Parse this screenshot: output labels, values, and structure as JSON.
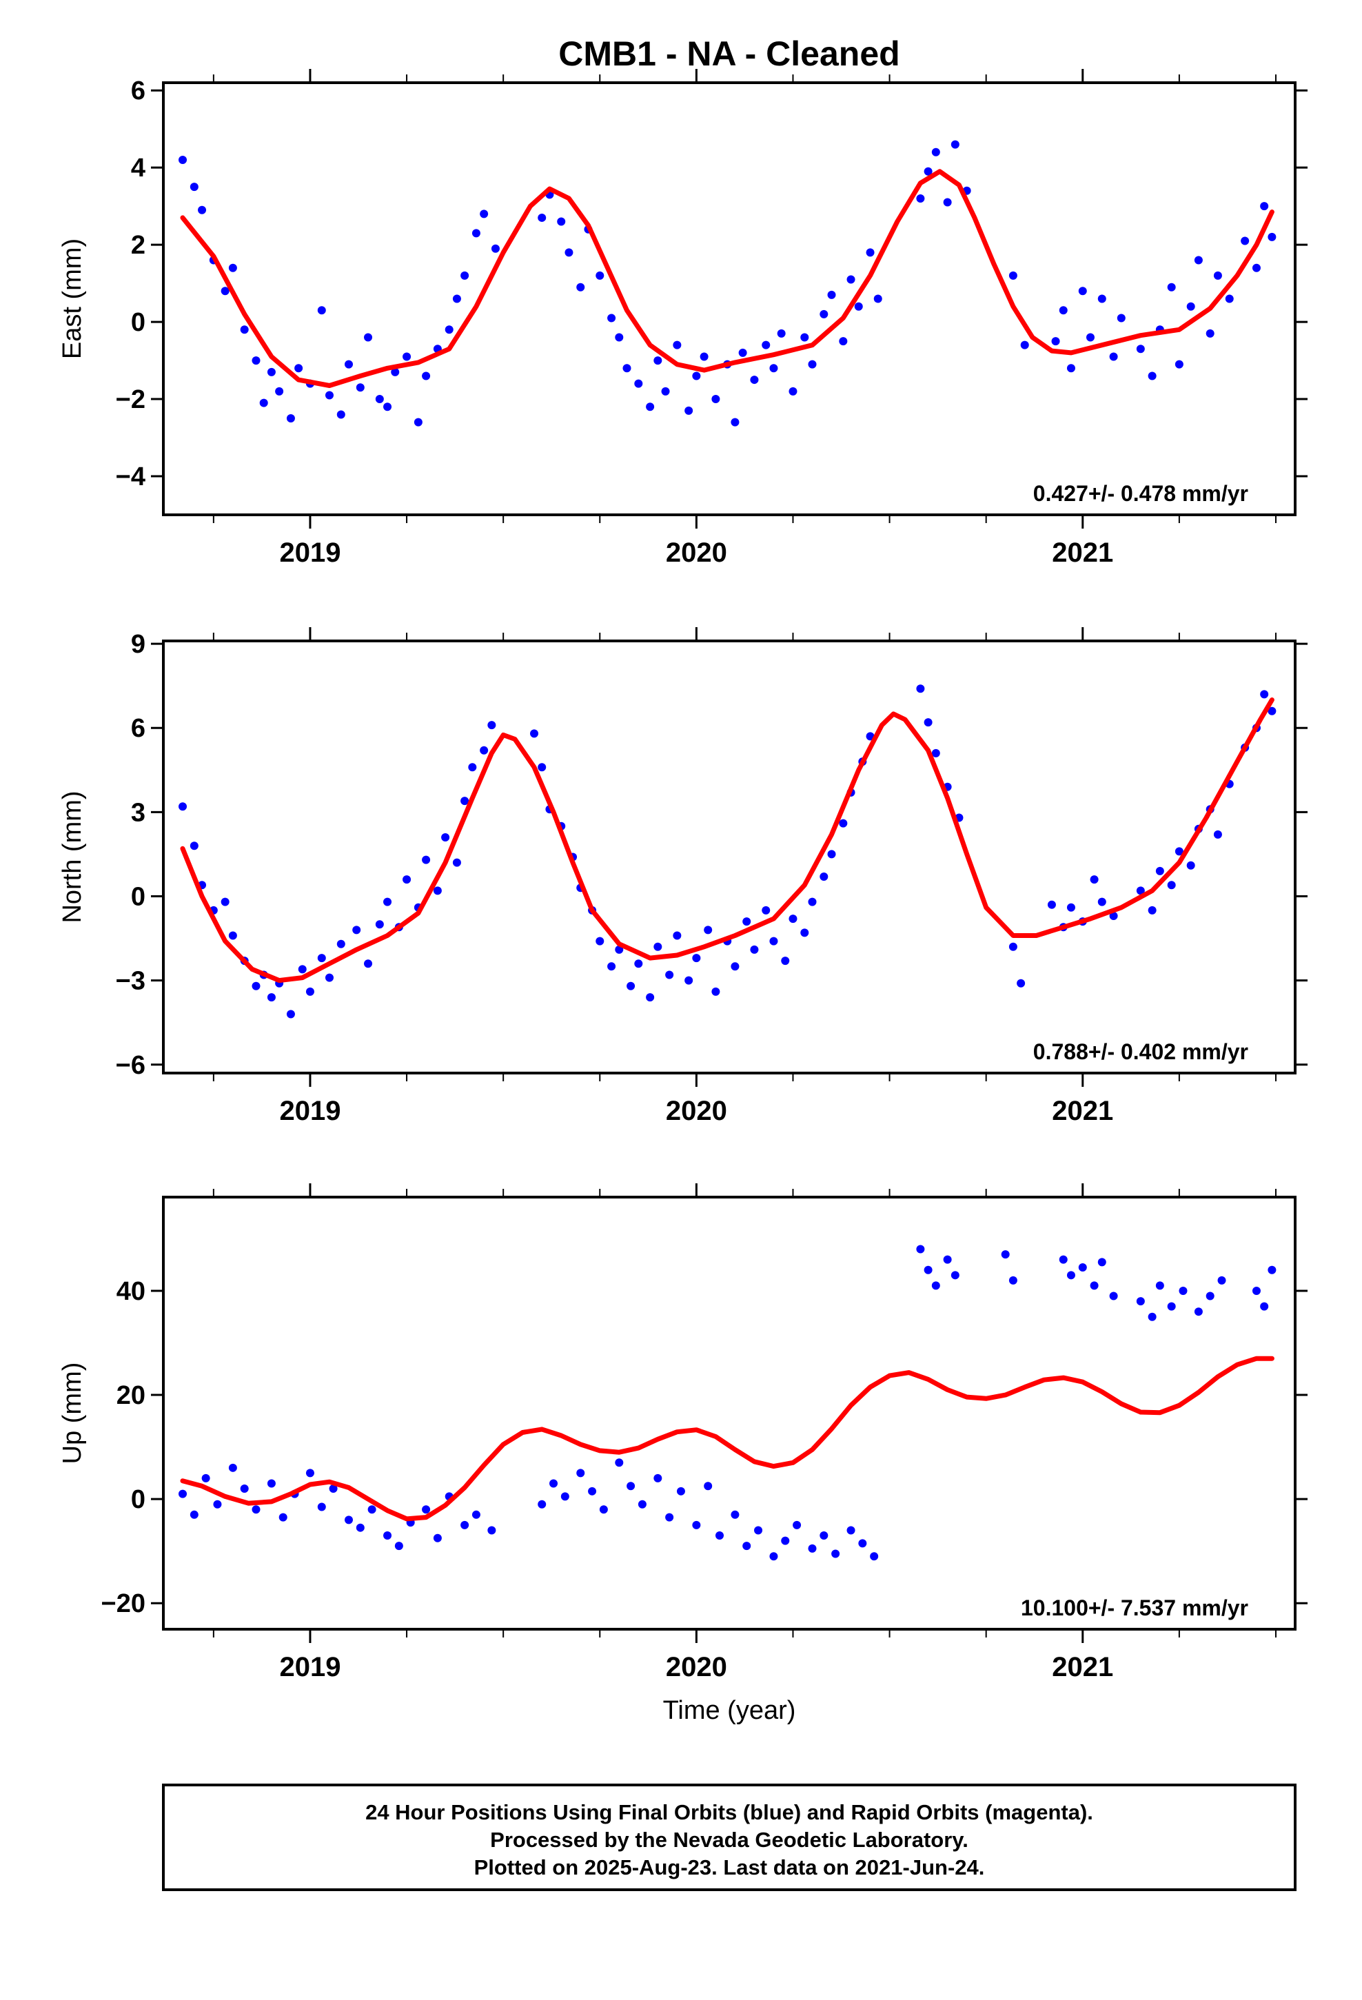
{
  "chart_data": [
    {
      "type": "scatter",
      "title": "CMB1  - NA - Cleaned",
      "ylabel": "East (mm)",
      "xlabel": "",
      "xlim": [
        2018.62,
        2021.55
      ],
      "ylim": [
        -5,
        6.2
      ],
      "yticks": [
        -4,
        -2,
        0,
        2,
        4,
        6
      ],
      "ytick_labels": [
        "−4",
        "−2",
        "0",
        "2",
        "4",
        "6"
      ],
      "xticks": [
        2019,
        2020,
        2021
      ],
      "xtick_labels": [
        "2019",
        "2020",
        "2021"
      ],
      "rate_text": "0.427+/- 0.478 mm/yr",
      "series": [
        {
          "role": "observed daily positions",
          "color": "#0000ff",
          "style": "dots",
          "x": [
            2018.67,
            2018.7,
            2018.72,
            2018.75,
            2018.78,
            2018.8,
            2018.83,
            2018.86,
            2018.88,
            2018.9,
            2018.92,
            2018.95,
            2018.97,
            2019.0,
            2019.03,
            2019.05,
            2019.08,
            2019.1,
            2019.13,
            2019.15,
            2019.18,
            2019.2,
            2019.22,
            2019.25,
            2019.28,
            2019.3,
            2019.33,
            2019.36,
            2019.38,
            2019.4,
            2019.43,
            2019.45,
            2019.48,
            2019.6,
            2019.62,
            2019.65,
            2019.67,
            2019.7,
            2019.72,
            2019.75,
            2019.78,
            2019.8,
            2019.82,
            2019.85,
            2019.88,
            2019.9,
            2019.92,
            2019.95,
            2019.98,
            2020.0,
            2020.02,
            2020.05,
            2020.08,
            2020.1,
            2020.12,
            2020.15,
            2020.18,
            2020.2,
            2020.22,
            2020.25,
            2020.28,
            2020.3,
            2020.33,
            2020.35,
            2020.38,
            2020.4,
            2020.42,
            2020.45,
            2020.47,
            2020.58,
            2020.6,
            2020.62,
            2020.65,
            2020.67,
            2020.7,
            2020.82,
            2020.85,
            2020.93,
            2020.95,
            2020.97,
            2021.0,
            2021.02,
            2021.05,
            2021.08,
            2021.1,
            2021.15,
            2021.18,
            2021.2,
            2021.23,
            2021.25,
            2021.28,
            2021.3,
            2021.33,
            2021.35,
            2021.38,
            2021.42,
            2021.45,
            2021.47,
            2021.49
          ],
          "y": [
            4.2,
            3.5,
            2.9,
            1.6,
            0.8,
            1.4,
            -0.2,
            -1.0,
            -2.1,
            -1.3,
            -1.8,
            -2.5,
            -1.2,
            -1.6,
            0.3,
            -1.9,
            -2.4,
            -1.1,
            -1.7,
            -0.4,
            -2.0,
            -2.2,
            -1.3,
            -0.9,
            -2.6,
            -1.4,
            -0.7,
            -0.2,
            0.6,
            1.2,
            2.3,
            2.8,
            1.9,
            2.7,
            3.3,
            2.6,
            1.8,
            0.9,
            2.4,
            1.2,
            0.1,
            -0.4,
            -1.2,
            -1.6,
            -2.2,
            -1.0,
            -1.8,
            -0.6,
            -2.3,
            -1.4,
            -0.9,
            -2.0,
            -1.1,
            -2.6,
            -0.8,
            -1.5,
            -0.6,
            -1.2,
            -0.3,
            -1.8,
            -0.4,
            -1.1,
            0.2,
            0.7,
            -0.5,
            1.1,
            0.4,
            1.8,
            0.6,
            3.2,
            3.9,
            4.4,
            3.1,
            4.6,
            3.4,
            1.2,
            -0.6,
            -0.5,
            0.3,
            -1.2,
            0.8,
            -0.4,
            0.6,
            -0.9,
            0.1,
            -0.7,
            -1.4,
            -0.2,
            0.9,
            -1.1,
            0.4,
            1.6,
            -0.3,
            1.2,
            0.6,
            2.1,
            1.4,
            3.0,
            2.2
          ]
        },
        {
          "role": "model fit",
          "color": "#ff0000",
          "style": "line",
          "x": [
            2018.67,
            2018.75,
            2018.83,
            2018.9,
            2018.97,
            2019.05,
            2019.13,
            2019.2,
            2019.28,
            2019.36,
            2019.43,
            2019.5,
            2019.57,
            2019.62,
            2019.67,
            2019.72,
            2019.77,
            2019.82,
            2019.88,
            2019.95,
            2020.02,
            2020.1,
            2020.2,
            2020.3,
            2020.38,
            2020.45,
            2020.52,
            2020.58,
            2020.63,
            2020.68,
            2020.72,
            2020.77,
            2020.82,
            2020.87,
            2020.92,
            2020.97,
            2021.05,
            2021.15,
            2021.25,
            2021.33,
            2021.4,
            2021.45,
            2021.49
          ],
          "y": [
            2.7,
            1.7,
            0.2,
            -0.9,
            -1.5,
            -1.65,
            -1.4,
            -1.2,
            -1.05,
            -0.7,
            0.4,
            1.8,
            3.0,
            3.45,
            3.2,
            2.5,
            1.4,
            0.3,
            -0.6,
            -1.1,
            -1.25,
            -1.05,
            -0.85,
            -0.6,
            0.1,
            1.2,
            2.6,
            3.6,
            3.9,
            3.55,
            2.7,
            1.5,
            0.4,
            -0.4,
            -0.75,
            -0.8,
            -0.6,
            -0.35,
            -0.2,
            0.35,
            1.2,
            2.0,
            2.85
          ]
        }
      ]
    },
    {
      "type": "scatter",
      "title": "",
      "ylabel": "North (mm)",
      "xlabel": "",
      "xlim": [
        2018.62,
        2021.55
      ],
      "ylim": [
        -6.3,
        9.1
      ],
      "yticks": [
        -6,
        -3,
        0,
        3,
        6,
        9
      ],
      "ytick_labels": [
        "−6",
        "−3",
        "0",
        "3",
        "6",
        "9"
      ],
      "xticks": [
        2019,
        2020,
        2021
      ],
      "xtick_labels": [
        "2019",
        "2020",
        "2021"
      ],
      "rate_text": "0.788+/- 0.402 mm/yr",
      "series": [
        {
          "role": "observed daily positions",
          "color": "#0000ff",
          "style": "dots",
          "x": [
            2018.67,
            2018.7,
            2018.72,
            2018.75,
            2018.78,
            2018.8,
            2018.83,
            2018.86,
            2018.88,
            2018.9,
            2018.92,
            2018.95,
            2018.98,
            2019.0,
            2019.03,
            2019.05,
            2019.08,
            2019.12,
            2019.15,
            2019.18,
            2019.2,
            2019.23,
            2019.25,
            2019.28,
            2019.3,
            2019.33,
            2019.35,
            2019.38,
            2019.4,
            2019.42,
            2019.45,
            2019.47,
            2019.58,
            2019.6,
            2019.62,
            2019.65,
            2019.68,
            2019.7,
            2019.73,
            2019.75,
            2019.78,
            2019.8,
            2019.83,
            2019.85,
            2019.88,
            2019.9,
            2019.93,
            2019.95,
            2019.98,
            2020.0,
            2020.03,
            2020.05,
            2020.08,
            2020.1,
            2020.13,
            2020.15,
            2020.18,
            2020.2,
            2020.23,
            2020.25,
            2020.28,
            2020.3,
            2020.33,
            2020.35,
            2020.38,
            2020.4,
            2020.43,
            2020.45,
            2020.58,
            2020.6,
            2020.62,
            2020.65,
            2020.68,
            2020.82,
            2020.84,
            2020.92,
            2020.95,
            2020.97,
            2021.0,
            2021.03,
            2021.05,
            2021.08,
            2021.15,
            2021.18,
            2021.2,
            2021.23,
            2021.25,
            2021.28,
            2021.3,
            2021.33,
            2021.35,
            2021.38,
            2021.42,
            2021.45,
            2021.47,
            2021.49
          ],
          "y": [
            3.2,
            1.8,
            0.4,
            -0.5,
            -0.2,
            -1.4,
            -2.3,
            -3.2,
            -2.8,
            -3.6,
            -3.1,
            -4.2,
            -2.6,
            -3.4,
            -2.2,
            -2.9,
            -1.7,
            -1.2,
            -2.4,
            -1.0,
            -0.2,
            -1.1,
            0.6,
            -0.4,
            1.3,
            0.2,
            2.1,
            1.2,
            3.4,
            4.6,
            5.2,
            6.1,
            5.8,
            4.6,
            3.1,
            2.5,
            1.4,
            0.3,
            -0.5,
            -1.6,
            -2.5,
            -1.9,
            -3.2,
            -2.4,
            -3.6,
            -1.8,
            -2.8,
            -1.4,
            -3.0,
            -2.2,
            -1.2,
            -3.4,
            -1.6,
            -2.5,
            -0.9,
            -1.9,
            -0.5,
            -1.6,
            -2.3,
            -0.8,
            -1.3,
            -0.2,
            0.7,
            1.5,
            2.6,
            3.7,
            4.8,
            5.7,
            7.4,
            6.2,
            5.1,
            3.9,
            2.8,
            -1.8,
            -3.1,
            -0.3,
            -1.1,
            -0.4,
            -0.9,
            0.6,
            -0.2,
            -0.7,
            0.2,
            -0.5,
            0.9,
            0.4,
            1.6,
            1.1,
            2.4,
            3.1,
            2.2,
            4.0,
            5.3,
            6.0,
            7.2,
            6.6
          ]
        },
        {
          "role": "model fit",
          "color": "#ff0000",
          "style": "line",
          "x": [
            2018.67,
            2018.72,
            2018.78,
            2018.85,
            2018.92,
            2018.98,
            2019.05,
            2019.12,
            2019.2,
            2019.28,
            2019.35,
            2019.42,
            2019.47,
            2019.5,
            2019.53,
            2019.58,
            2019.63,
            2019.68,
            2019.73,
            2019.8,
            2019.88,
            2019.95,
            2020.02,
            2020.1,
            2020.2,
            2020.28,
            2020.35,
            2020.42,
            2020.48,
            2020.51,
            2020.54,
            2020.6,
            2020.65,
            2020.7,
            2020.75,
            2020.82,
            2020.88,
            2020.95,
            2021.02,
            2021.1,
            2021.18,
            2021.25,
            2021.32,
            2021.4,
            2021.46,
            2021.49
          ],
          "y": [
            1.7,
            0.0,
            -1.6,
            -2.6,
            -3.0,
            -2.9,
            -2.4,
            -1.9,
            -1.4,
            -0.6,
            1.2,
            3.5,
            5.1,
            5.75,
            5.6,
            4.6,
            3.0,
            1.2,
            -0.5,
            -1.7,
            -2.2,
            -2.1,
            -1.8,
            -1.4,
            -0.8,
            0.4,
            2.2,
            4.5,
            6.1,
            6.5,
            6.3,
            5.2,
            3.5,
            1.5,
            -0.4,
            -1.4,
            -1.4,
            -1.1,
            -0.8,
            -0.4,
            0.2,
            1.2,
            2.8,
            4.8,
            6.3,
            7.0
          ]
        }
      ]
    },
    {
      "type": "scatter",
      "title": "",
      "ylabel": "Up (mm)",
      "xlabel": "Time (year)",
      "xlim": [
        2018.62,
        2021.55
      ],
      "ylim": [
        -25,
        58
      ],
      "yticks": [
        -20,
        0,
        20,
        40
      ],
      "ytick_labels": [
        "−20",
        "0",
        "20",
        "40"
      ],
      "xticks": [
        2019,
        2020,
        2021
      ],
      "xtick_labels": [
        "2019",
        "2020",
        "2021"
      ],
      "rate_text": "10.100+/- 7.537 mm/yr",
      "series": [
        {
          "role": "observed daily positions",
          "color": "#0000ff",
          "style": "dots",
          "x": [
            2018.67,
            2018.7,
            2018.73,
            2018.76,
            2018.8,
            2018.83,
            2018.86,
            2018.9,
            2018.93,
            2018.96,
            2019.0,
            2019.03,
            2019.06,
            2019.1,
            2019.13,
            2019.16,
            2019.2,
            2019.23,
            2019.26,
            2019.3,
            2019.33,
            2019.36,
            2019.4,
            2019.43,
            2019.47,
            2019.6,
            2019.63,
            2019.66,
            2019.7,
            2019.73,
            2019.76,
            2019.8,
            2019.83,
            2019.86,
            2019.9,
            2019.93,
            2019.96,
            2020.0,
            2020.03,
            2020.06,
            2020.1,
            2020.13,
            2020.16,
            2020.2,
            2020.23,
            2020.26,
            2020.3,
            2020.33,
            2020.36,
            2020.4,
            2020.43,
            2020.46,
            2020.58,
            2020.6,
            2020.62,
            2020.65,
            2020.67,
            2020.8,
            2020.82,
            2020.95,
            2020.97,
            2021.0,
            2021.03,
            2021.05,
            2021.08,
            2021.15,
            2021.18,
            2021.2,
            2021.23,
            2021.26,
            2021.3,
            2021.33,
            2021.36,
            2021.45,
            2021.47,
            2021.49
          ],
          "y": [
            1.0,
            -3.0,
            4.0,
            -1.0,
            6.0,
            2.0,
            -2.0,
            3.0,
            -3.5,
            1.0,
            5.0,
            -1.5,
            2.0,
            -4.0,
            -5.5,
            -2.0,
            -7.0,
            -9.0,
            -4.5,
            -2.0,
            -7.5,
            0.5,
            -5.0,
            -3.0,
            -6.0,
            -1.0,
            3.0,
            0.5,
            5.0,
            1.5,
            -2.0,
            7.0,
            2.5,
            -1.0,
            4.0,
            -3.5,
            1.5,
            -5.0,
            2.5,
            -7.0,
            -3.0,
            -9.0,
            -6.0,
            -11.0,
            -8.0,
            -5.0,
            -9.5,
            -7.0,
            -10.5,
            -6.0,
            -8.5,
            -11.0,
            48.0,
            44.0,
            41.0,
            46.0,
            43.0,
            47.0,
            42.0,
            46.0,
            43.0,
            44.5,
            41.0,
            45.5,
            39.0,
            38.0,
            35.0,
            41.0,
            37.0,
            40.0,
            36.0,
            39.0,
            42.0,
            40.0,
            37.0,
            44.0
          ]
        },
        {
          "role": "model fit",
          "color": "#ff0000",
          "style": "line",
          "x": [
            2018.67,
            2018.72,
            2018.78,
            2018.84,
            2018.9,
            2018.95,
            2019.0,
            2019.05,
            2019.1,
            2019.15,
            2019.2,
            2019.25,
            2019.3,
            2019.35,
            2019.4,
            2019.45,
            2019.5,
            2019.55,
            2019.6,
            2019.65,
            2019.7,
            2019.75,
            2019.8,
            2019.85,
            2019.9,
            2019.95,
            2020.0,
            2020.05,
            2020.1,
            2020.15,
            2020.2,
            2020.25,
            2020.3,
            2020.35,
            2020.4,
            2020.45,
            2020.5,
            2020.55,
            2020.6,
            2020.65,
            2020.7,
            2020.75,
            2020.8,
            2020.85,
            2020.9,
            2020.95,
            2021.0,
            2021.05,
            2021.1,
            2021.15,
            2021.2,
            2021.25,
            2021.3,
            2021.35,
            2021.4,
            2021.45,
            2021.49
          ],
          "y": [
            3.5,
            2.5,
            0.5,
            -0.8,
            -0.5,
            1.0,
            2.8,
            3.3,
            2.2,
            0.0,
            -2.2,
            -3.8,
            -3.5,
            -1.2,
            2.2,
            6.5,
            10.5,
            12.8,
            13.4,
            12.2,
            10.5,
            9.3,
            9.0,
            9.8,
            11.5,
            12.9,
            13.3,
            12.0,
            9.5,
            7.2,
            6.3,
            7.0,
            9.5,
            13.5,
            18.0,
            21.5,
            23.7,
            24.3,
            23.0,
            21.0,
            19.6,
            19.3,
            20.0,
            21.5,
            22.9,
            23.3,
            22.5,
            20.6,
            18.3,
            16.7,
            16.6,
            18.0,
            20.5,
            23.5,
            25.8,
            27.0,
            27.0
          ]
        }
      ]
    }
  ],
  "footer": {
    "line1": "24 Hour Positions Using Final Orbits (blue) and Rapid Orbits (magenta).",
    "line2": "Processed by the Nevada Geodetic Laboratory.",
    "line3": "Plotted on 2025-Aug-23. Last data on 2021-Jun-24."
  }
}
